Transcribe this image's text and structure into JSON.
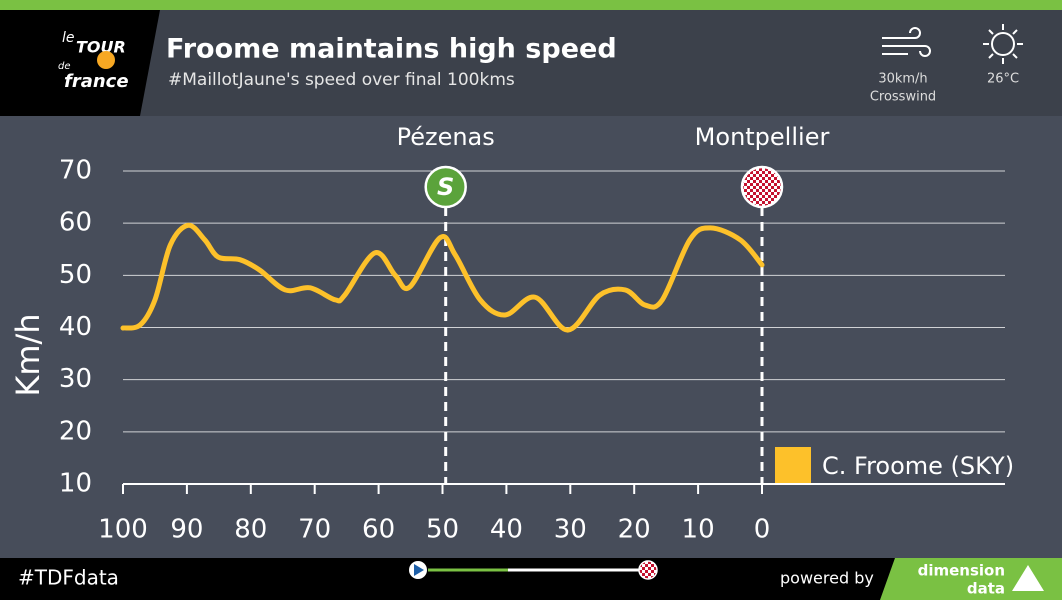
{
  "logo": {
    "lines": [
      "le",
      "TOUR",
      "de",
      "france"
    ]
  },
  "header": {
    "title": "Froome maintains high speed",
    "subtitle": "#MaillotJaune's speed over final 100kms"
  },
  "weather": {
    "wind": "30km/h",
    "wind_label": "Crosswind",
    "temperature": "26°C"
  },
  "footer": {
    "hashtag": "#TDFdata",
    "powered_by": "powered by",
    "brand": [
      "dimension",
      "data"
    ]
  },
  "chart_data": {
    "type": "line",
    "ylabel": "Km/h",
    "x": [
      100,
      97.3,
      95,
      92.6,
      89.8,
      87.2,
      85.1,
      81.7,
      78.6,
      74.6,
      70.7,
      66.8,
      65.3,
      60.6,
      57.4,
      55.1,
      50.4,
      48,
      44.1,
      40.2,
      35.5,
      30.4,
      25.4,
      21.4,
      18.3,
      15.6,
      11.3,
      8.1,
      3.4,
      0
    ],
    "series": [
      {
        "name": "C. Froome (SKY)",
        "color": "#fdc12a",
        "values": [
          39.9,
          40.5,
          45.3,
          55.8,
          59.6,
          56.8,
          53.5,
          53,
          51,
          47.2,
          47.6,
          45.3,
          46.2,
          54.3,
          50,
          47.8,
          57.2,
          53.9,
          45.3,
          42.4,
          45.8,
          39.5,
          46.2,
          47.2,
          44.3,
          45.3,
          56.8,
          59.1,
          56.8,
          52
        ]
      }
    ],
    "xlim": [
      100,
      0
    ],
    "xticks": [
      100,
      90,
      80,
      70,
      60,
      50,
      40,
      30,
      20,
      10,
      0
    ],
    "ylim": [
      10,
      70
    ],
    "yticks": [
      10,
      20,
      30,
      40,
      50,
      60,
      70
    ],
    "grid": true,
    "annotations": [
      {
        "label": "Pézenas",
        "x": 49.5,
        "icon": "S"
      },
      {
        "label": "Montpellier",
        "x": 0
      }
    ]
  }
}
